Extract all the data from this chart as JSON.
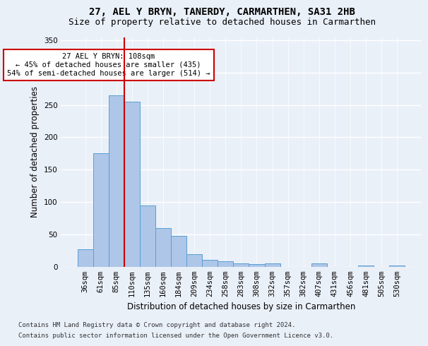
{
  "title1": "27, AEL Y BRYN, TANERDY, CARMARTHEN, SA31 2HB",
  "title2": "Size of property relative to detached houses in Carmarthen",
  "xlabel": "Distribution of detached houses by size in Carmarthen",
  "ylabel": "Number of detached properties",
  "bin_labels": [
    "36sqm",
    "61sqm",
    "85sqm",
    "110sqm",
    "135sqm",
    "160sqm",
    "184sqm",
    "209sqm",
    "234sqm",
    "258sqm",
    "283sqm",
    "308sqm",
    "332sqm",
    "357sqm",
    "382sqm",
    "407sqm",
    "431sqm",
    "456sqm",
    "481sqm",
    "505sqm",
    "530sqm"
  ],
  "bar_heights": [
    27,
    175,
    265,
    255,
    95,
    60,
    47,
    19,
    10,
    8,
    5,
    4,
    5,
    0,
    0,
    5,
    0,
    0,
    2,
    0,
    2
  ],
  "bar_color": "#aec6e8",
  "bar_edge_color": "#5a9fd4",
  "vline_x_index": 2.5,
  "vline_color": "#cc0000",
  "annotation_text": "27 AEL Y BRYN: 108sqm\n← 45% of detached houses are smaller (435)\n54% of semi-detached houses are larger (514) →",
  "annotation_box_color": "#ffffff",
  "annotation_box_edge": "#cc0000",
  "ylim": [
    0,
    355
  ],
  "yticks": [
    0,
    50,
    100,
    150,
    200,
    250,
    300,
    350
  ],
  "footer1": "Contains HM Land Registry data © Crown copyright and database right 2024.",
  "footer2": "Contains public sector information licensed under the Open Government Licence v3.0.",
  "background_color": "#eaf0f8",
  "grid_color": "#ffffff",
  "title_fontsize": 10,
  "subtitle_fontsize": 9,
  "axis_label_fontsize": 8.5,
  "tick_fontsize": 7.5,
  "footer_fontsize": 6.5
}
